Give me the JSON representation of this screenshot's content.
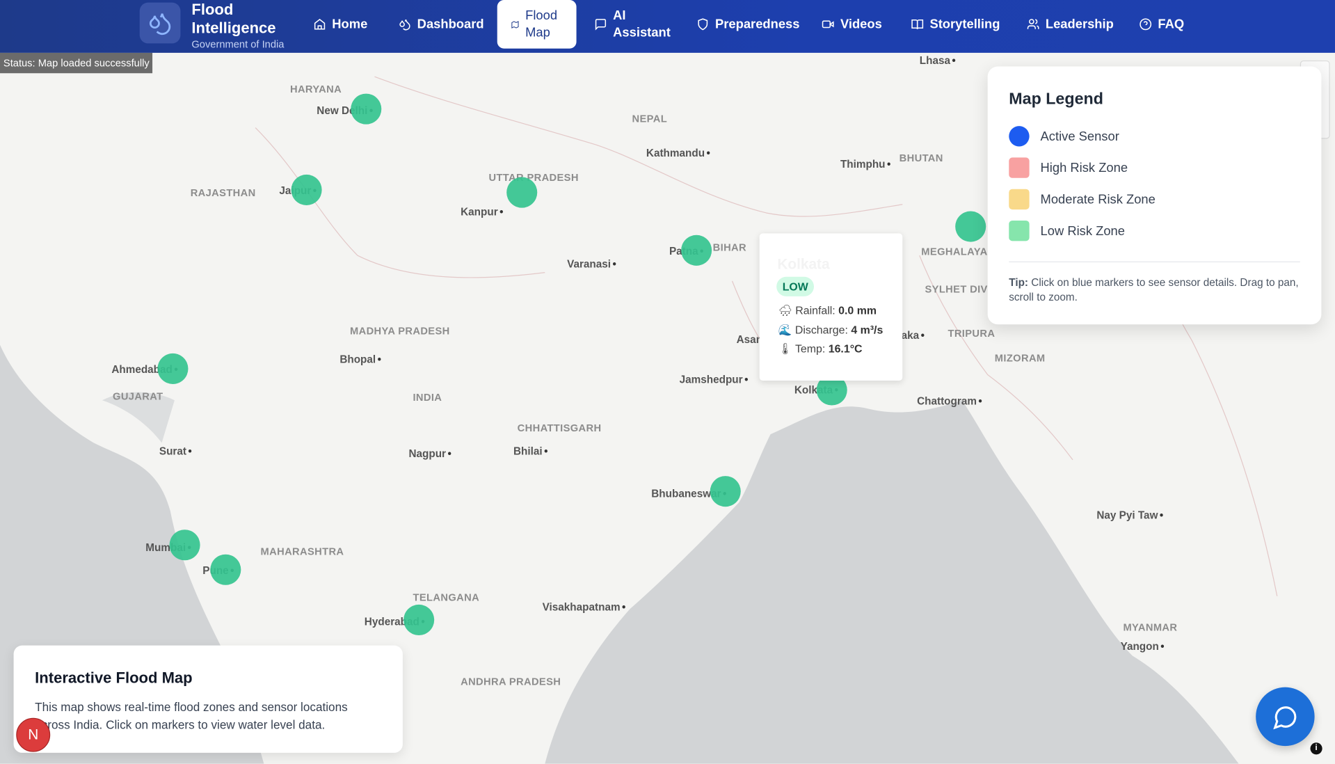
{
  "header": {
    "brand_title": "Flood Intelligence",
    "brand_subtitle": "Government of India",
    "nav": [
      {
        "label": "Home",
        "icon": "home-icon"
      },
      {
        "label": "Dashboard",
        "icon": "droplets-icon"
      },
      {
        "label": "Flood Map",
        "icon": "map-icon",
        "active": true
      },
      {
        "label": "AI Assistant",
        "icon": "message-icon"
      },
      {
        "label": "Preparedness",
        "icon": "shield-icon"
      },
      {
        "label": "Videos",
        "icon": "video-icon"
      },
      {
        "label": "Storytelling",
        "icon": "book-icon"
      },
      {
        "label": "Leadership",
        "icon": "users-icon"
      },
      {
        "label": "FAQ",
        "icon": "help-icon"
      }
    ]
  },
  "status": "Status: Map loaded successfully",
  "map": {
    "cities": [
      "Lhasa",
      "New Delhi",
      "Kathmandu",
      "Thimphu",
      "Jaipur",
      "Kanpur",
      "Patna",
      "Varanasi",
      "Dhaka",
      "Asansol",
      "Ahmedabad",
      "Bhopal",
      "Jamshedpur",
      "Kolkata",
      "Chattogram",
      "Surat",
      "Nagpur",
      "Bhilai",
      "Bhubaneswar",
      "Nay Pyi Taw",
      "Mumbai",
      "Pune",
      "Visakhapatnam",
      "Hyderabad",
      "Yangon"
    ],
    "regions": [
      "HARYANA",
      "NEPAL",
      "BHUTAN",
      "RAJASTHAN",
      "UTTAR PRADESH",
      "BIHAR",
      "MEGHALAYA",
      "SYLHET DIVI",
      "TRIPURA",
      "MIZORAM",
      "MADHYA PRADESH",
      "INDIA",
      "GUJARAT",
      "CHHATTISGARH",
      "MAHARASHTRA",
      "TELANGANA",
      "ANDHRA PRADESH",
      "MYANMAR"
    ],
    "markers": [
      "New Delhi",
      "Jaipur",
      "Kanpur",
      "Patna",
      "Meghalaya",
      "Ahmedabad",
      "Kolkata",
      "Bhubaneswar",
      "Mumbai",
      "Pune",
      "Hyderabad"
    ],
    "marker_color": "#34c38f"
  },
  "popup": {
    "title": "Kolkata",
    "risk": "LOW",
    "rainfall_label": "Rainfall:",
    "rainfall": "0.0 mm",
    "discharge_label": "Discharge:",
    "discharge": "4 m³/s",
    "temp_label": "Temp:",
    "temp": "16.1°C"
  },
  "legend": {
    "title": "Map Legend",
    "items": [
      {
        "label": "Active Sensor",
        "color": "#1d5cf0"
      },
      {
        "label": "High Risk Zone",
        "color": "#f8a1a1"
      },
      {
        "label": "Moderate Risk Zone",
        "color": "#f9d98a"
      },
      {
        "label": "Low Risk Zone",
        "color": "#86e5ac"
      }
    ],
    "tip_label": "Tip:",
    "tip": "Click on blue markers to see sensor details. Drag to pan, scroll to zoom."
  },
  "info": {
    "title": "Interactive Flood Map",
    "text": "This map shows real-time flood zones and sensor locations across India. Click on markers to view water level data."
  },
  "avatar": "N",
  "attribution": "i"
}
